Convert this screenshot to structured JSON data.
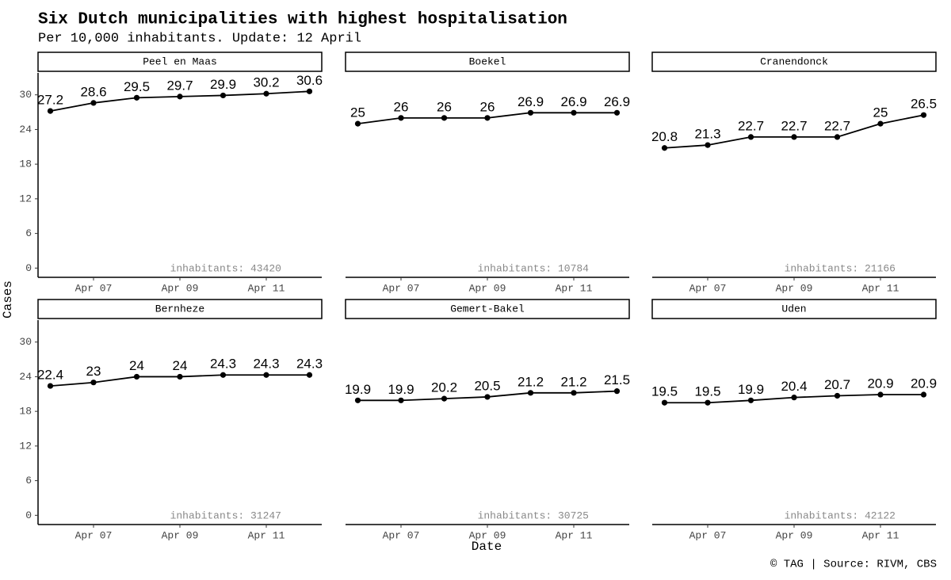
{
  "chart_data": {
    "type": "line",
    "title": "Six Dutch municipalities with highest hospitalisation",
    "subtitle": "Per 10,000 inhabitants. Update: 12 April",
    "x_label": "Date",
    "y_label": "Cases",
    "caption": "© TAG | Source: RIVM, CBS",
    "categories": [
      null,
      "Apr 07",
      null,
      "Apr 09",
      null,
      "Apr 11",
      null
    ],
    "ylim": [
      -1.6,
      33.8
    ],
    "yticks": [
      0,
      6,
      12,
      18,
      24,
      30
    ],
    "color": "#000000",
    "series": [
      {
        "name": "Peel en Maas",
        "values": [
          27.2,
          28.6,
          29.5,
          29.7,
          29.9,
          30.2,
          30.6
        ],
        "note": "inhabitants: 43420"
      },
      {
        "name": "Boekel",
        "values": [
          25,
          26,
          26,
          26,
          26.9,
          26.9,
          26.9
        ],
        "note": "inhabitants: 10784"
      },
      {
        "name": "Cranendonck",
        "values": [
          20.8,
          21.3,
          22.7,
          22.7,
          22.7,
          25,
          26.5
        ],
        "note": "inhabitants: 21166"
      },
      {
        "name": "Bernheze",
        "values": [
          22.4,
          23,
          24,
          24,
          24.3,
          24.3,
          24.3
        ],
        "note": "inhabitants: 31247"
      },
      {
        "name": "Gemert-Bakel",
        "values": [
          19.9,
          19.9,
          20.2,
          20.5,
          21.2,
          21.2,
          21.5
        ],
        "note": "inhabitants: 30725"
      },
      {
        "name": "Uden",
        "values": [
          19.5,
          19.5,
          19.9,
          20.4,
          20.7,
          20.9,
          20.9
        ],
        "note": "inhabitants: 42122"
      }
    ]
  }
}
